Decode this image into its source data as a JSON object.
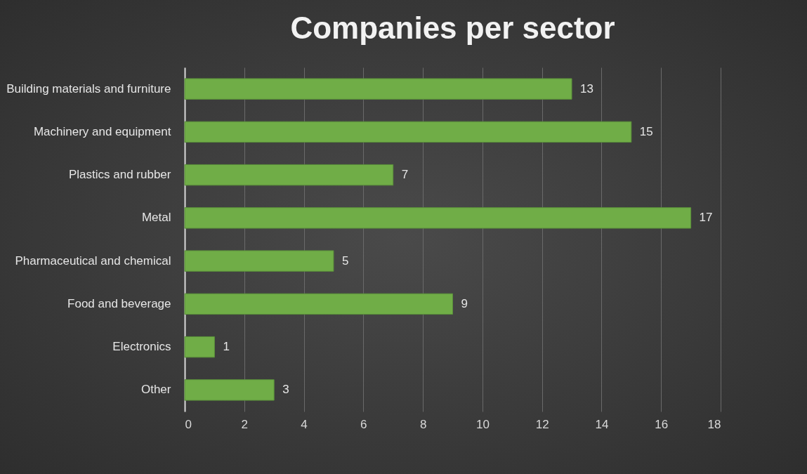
{
  "chart_data": {
    "type": "bar",
    "title": "Companies per sector",
    "orientation": "horizontal",
    "categories": [
      "Building materials and furniture",
      "Machinery and equipment",
      "Plastics and rubber",
      "Metal",
      "Pharmaceutical and chemical",
      "Food and beverage",
      "Electronics",
      "Other"
    ],
    "values": [
      13,
      15,
      7,
      17,
      5,
      9,
      1,
      3
    ],
    "color": "#70ad47",
    "xlim": [
      0,
      18
    ],
    "xticks": [
      0,
      2,
      4,
      6,
      8,
      10,
      12,
      14,
      16,
      18
    ],
    "grid": "x",
    "data_labels": true
  }
}
